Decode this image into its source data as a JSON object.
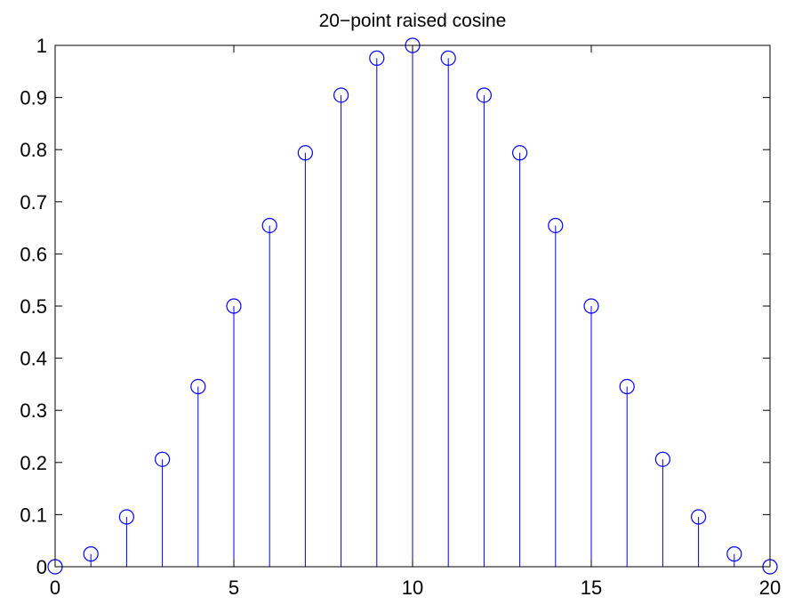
{
  "chart_data": {
    "type": "stem",
    "title": "20−point raised cosine",
    "xlabel": "",
    "ylabel": "",
    "xlim": [
      0,
      20
    ],
    "ylim": [
      0,
      1
    ],
    "x_ticks": [
      0,
      5,
      10,
      15,
      20
    ],
    "x_tick_labels": [
      "0",
      "5",
      "10",
      "15",
      "20"
    ],
    "y_ticks": [
      0,
      0.1,
      0.2,
      0.3,
      0.4,
      0.5,
      0.6,
      0.7,
      0.8,
      0.9,
      1
    ],
    "y_tick_labels": [
      "0",
      "0.1",
      "0.2",
      "0.3",
      "0.4",
      "0.5",
      "0.6",
      "0.7",
      "0.8",
      "0.9",
      "1"
    ],
    "grid": false,
    "color": "#0000ff",
    "marker": "circle",
    "x": [
      0,
      1,
      2,
      3,
      4,
      5,
      6,
      7,
      8,
      9,
      10,
      11,
      12,
      13,
      14,
      15,
      16,
      17,
      18,
      19,
      20
    ],
    "values": [
      0,
      0.0245,
      0.0955,
      0.2061,
      0.3455,
      0.5,
      0.6545,
      0.7939,
      0.9045,
      0.9755,
      1,
      0.9755,
      0.9045,
      0.7939,
      0.6545,
      0.5,
      0.3455,
      0.2061,
      0.0955,
      0.0245,
      0
    ]
  }
}
